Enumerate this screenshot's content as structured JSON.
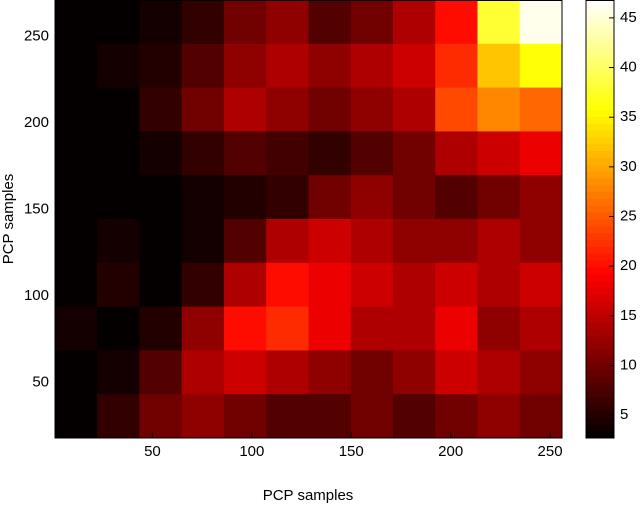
{
  "chart_data": {
    "type": "heatmap",
    "xlabel": "PCP samples",
    "ylabel": "PCP samples",
    "xlim": [
      1,
      256
    ],
    "ylim": [
      18,
      271
    ],
    "xticks": [
      50,
      100,
      150,
      200,
      250
    ],
    "yticks": [
      50,
      100,
      150,
      200,
      250
    ],
    "colormap": "hot",
    "clim": [
      2.7,
      46.8
    ],
    "cticks": [
      5,
      10,
      15,
      20,
      25,
      30,
      35,
      40,
      45
    ],
    "z": [
      [
        3,
        3,
        4,
        6,
        10,
        12,
        8,
        10,
        14,
        20,
        38,
        46
      ],
      [
        3,
        4,
        5,
        8,
        12,
        14,
        12,
        14,
        16,
        22,
        32,
        36
      ],
      [
        3,
        3,
        6,
        10,
        14,
        12,
        10,
        12,
        14,
        24,
        28,
        26
      ],
      [
        3,
        3,
        4,
        6,
        8,
        7,
        6,
        8,
        10,
        14,
        16,
        18
      ],
      [
        3,
        3,
        3,
        4,
        5,
        6,
        10,
        12,
        10,
        8,
        10,
        12
      ],
      [
        3,
        4,
        3,
        4,
        8,
        14,
        16,
        14,
        12,
        12,
        14,
        12
      ],
      [
        3,
        5,
        3,
        6,
        14,
        20,
        18,
        16,
        14,
        16,
        14,
        16
      ],
      [
        4,
        3,
        5,
        12,
        20,
        22,
        18,
        14,
        14,
        18,
        12,
        14
      ],
      [
        3,
        4,
        8,
        14,
        16,
        14,
        12,
        10,
        12,
        16,
        14,
        12
      ],
      [
        3,
        6,
        10,
        12,
        10,
        8,
        8,
        10,
        8,
        10,
        12,
        10
      ]
    ]
  }
}
